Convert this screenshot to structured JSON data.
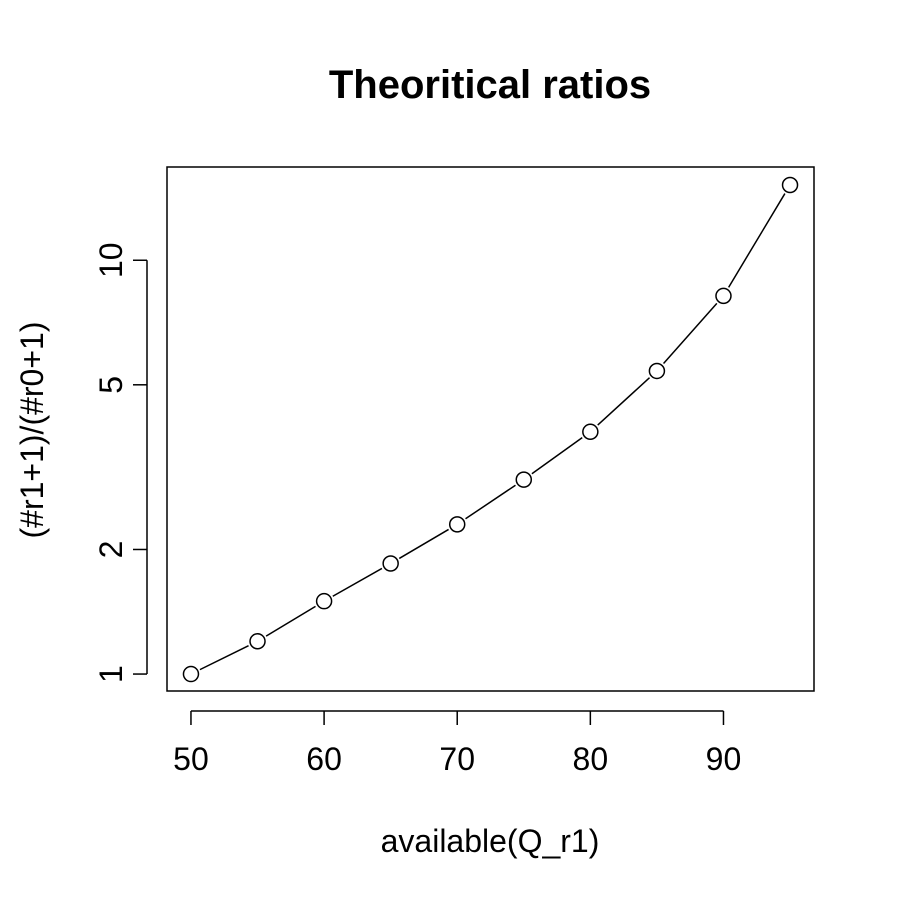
{
  "chart_data": {
    "type": "line",
    "title": "Theoritical ratios",
    "xlabel": "available(Q_r1)",
    "ylabel": "(#r1+1)/(#r0+1)",
    "y_scale": "log",
    "x": [
      50,
      55,
      60,
      65,
      70,
      75,
      80,
      85,
      90,
      95
    ],
    "series": [
      {
        "values": [
          1.0,
          1.2,
          1.5,
          1.85,
          2.3,
          2.95,
          3.85,
          5.4,
          8.2,
          15.2
        ]
      }
    ],
    "xticks": [
      50,
      60,
      70,
      80,
      90
    ],
    "yticks": [
      1,
      2,
      5,
      10
    ],
    "xlim": [
      48.2,
      96.8
    ],
    "ylim": [
      0.91,
      16.8
    ],
    "marker": "open-circle",
    "line_style": "connected segments between points",
    "grid": false,
    "legend": "none",
    "line_color": "#000000"
  }
}
